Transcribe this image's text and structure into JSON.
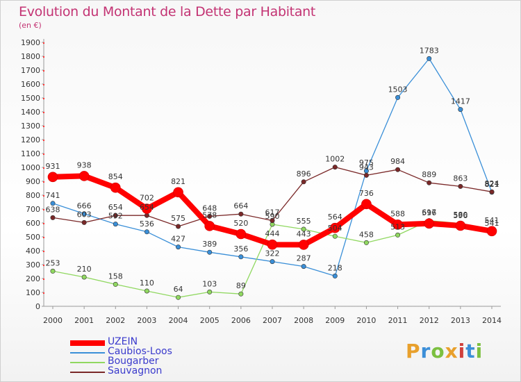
{
  "header": {
    "title": "Evolution du Montant de la Dette par Habitant",
    "subtitle": "(en €)"
  },
  "logo": {
    "text": "Proxiti",
    "colors": [
      "#e8a02c",
      "#3c8fd8",
      "#7cc040",
      "#e8a02c",
      "#d0403c",
      "#3c8fd8",
      "#7cc040"
    ]
  },
  "chart_data": {
    "type": "line",
    "title": "Evolution du Montant de la Dette par Habitant",
    "subtitle": "(en €)",
    "x": [
      "2000",
      "2001",
      "2002",
      "2003",
      "2004",
      "2005",
      "2006",
      "2007",
      "2008",
      "2009",
      "2010",
      "2011",
      "2012",
      "2013",
      "2014"
    ],
    "ylim": [
      0,
      1900
    ],
    "yticks": [
      0,
      100,
      200,
      300,
      400,
      500,
      600,
      700,
      800,
      900,
      1000,
      1100,
      1200,
      1300,
      1400,
      1500,
      1600,
      1700,
      1800,
      1900
    ],
    "grid": false,
    "legend_position": "bottom-left",
    "series": [
      {
        "name": "UZEIN",
        "color": "#ff0000",
        "emphasis": true,
        "values": [
          931,
          938,
          854,
          702,
          821,
          578,
          520,
          444,
          443,
          564,
          736,
          588,
          596,
          580,
          541
        ],
        "labels": [
          "931",
          "938",
          "854",
          "702",
          "821",
          "578",
          "520",
          "444",
          "443",
          "564",
          "736",
          "588",
          "596",
          "580",
          "541"
        ]
      },
      {
        "name": "Caubios-Loos",
        "color": "#3a8fd8",
        "values": [
          741,
          666,
          592,
          536,
          427,
          389,
          356,
          322,
          287,
          218,
          975,
          1503,
          1783,
          1417,
          821
        ],
        "labels": [
          "741",
          "666",
          "592",
          "536",
          "427",
          "389",
          "356",
          "322",
          "287",
          "218",
          "975",
          "1503",
          "1783",
          "1417",
          "821"
        ]
      },
      {
        "name": "Bougarber",
        "color": "#90d860",
        "values": [
          253,
          210,
          158,
          110,
          64,
          103,
          89,
          590,
          555,
          504,
          458,
          513,
          617,
          596,
          541
        ],
        "labels": [
          "253",
          "210",
          "158",
          "110",
          "64",
          "103",
          "89",
          "590",
          "555",
          "504",
          "458",
          "513",
          "617",
          "596",
          "541"
        ]
      },
      {
        "name": "Sauvagnon",
        "color": "#7a2828",
        "values": [
          638,
          603,
          654,
          654,
          575,
          648,
          664,
          617,
          896,
          1002,
          943,
          984,
          889,
          863,
          824
        ],
        "labels": [
          "638",
          "603",
          "654",
          "654",
          "575",
          "648",
          "664",
          "617",
          "896",
          "1002",
          "943",
          "984",
          "889",
          "863",
          "824"
        ]
      }
    ]
  }
}
